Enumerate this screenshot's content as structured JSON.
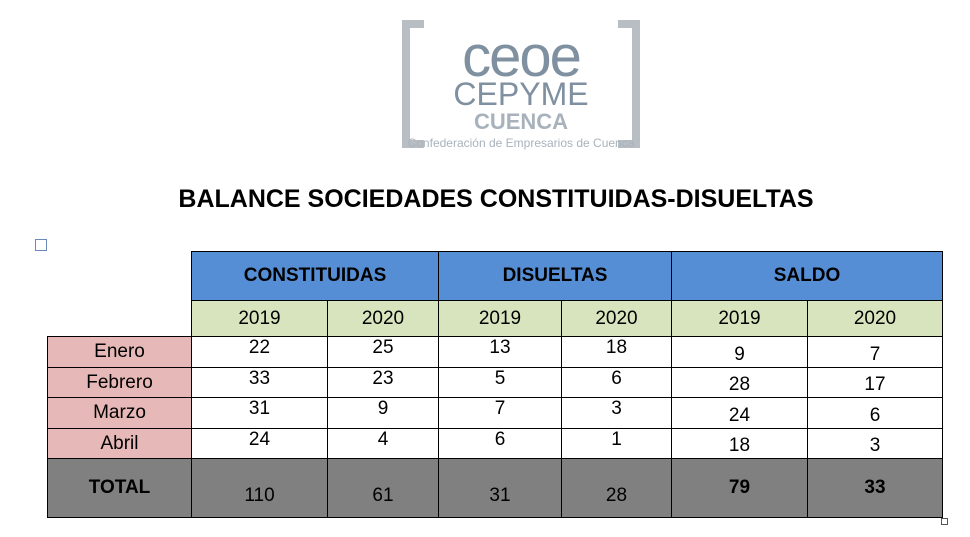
{
  "logo": {
    "name": "ceoe",
    "line2": "CEPYME",
    "line3": "CUENCA",
    "tagline": "Confederación de Empresarios de Cuenca"
  },
  "title": "BALANCE SOCIEDADES CONSTITUIDAS-DISUELTAS",
  "table": {
    "groups": [
      "CONSTITUIDAS",
      "DISUELTAS",
      "SALDO"
    ],
    "years": [
      "2019",
      "2020",
      "2019",
      "2020",
      "2019",
      "2020"
    ],
    "rows": [
      [
        "Enero",
        22,
        25,
        13,
        18,
        9,
        7
      ],
      [
        "Febrero",
        33,
        23,
        5,
        6,
        28,
        17
      ],
      [
        "Marzo",
        31,
        9,
        7,
        3,
        24,
        6
      ],
      [
        "Abril",
        24,
        4,
        6,
        1,
        18,
        3
      ]
    ],
    "total": [
      "TOTAL",
      110,
      61,
      31,
      28,
      79,
      33
    ]
  }
}
